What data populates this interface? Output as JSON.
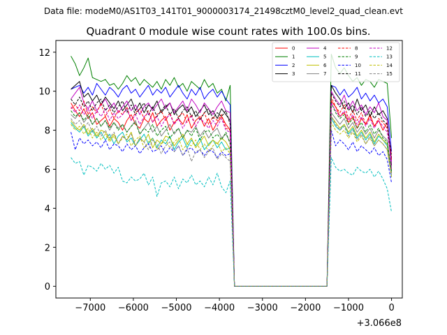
{
  "chart_data": {
    "type": "line",
    "suptitle": "Data file: modeM0/AS1T03_141T01_9000003174_21498cztM0_level2_quad_clean.evt",
    "title": "Quadrant 0 module wise count rates with 100.0s bins.",
    "xlabel": "",
    "ylabel": "",
    "x_offset_label": "+3.066e8",
    "xlim": [
      -7800,
      250
    ],
    "ylim": [
      -0.6,
      12.6
    ],
    "xticks": [
      -7000,
      -6000,
      -5000,
      -4000,
      -3000,
      -2000,
      -1000,
      0
    ],
    "xtick_labels": [
      "−7000",
      "−6000",
      "−5000",
      "−4000",
      "−3000",
      "−2000",
      "−1000",
      "0"
    ],
    "yticks": [
      0,
      2,
      4,
      6,
      8,
      10,
      12
    ],
    "ytick_labels": [
      "0",
      "2",
      "4",
      "6",
      "8",
      "10",
      "12"
    ],
    "gap": [
      -3650,
      -1500
    ],
    "segment1": {
      "start": -7450,
      "end": -3750,
      "step": 100,
      "count": 38
    },
    "segment2": {
      "start": -1400,
      "end": -100,
      "step": 100,
      "count": 14
    },
    "endpoint_x": 0,
    "legend_position": "upper right",
    "series": [
      {
        "name": "0",
        "color": "#ff0000",
        "dash": "solid",
        "seg1": [
          9.4,
          9.0,
          8.7,
          9.1,
          8.6,
          8.9,
          8.3,
          8.5,
          8.7,
          8.2,
          8.6,
          8.4,
          8.0,
          8.5,
          8.8,
          8.3,
          8.1,
          8.6,
          8.4,
          8.9,
          8.2,
          8.5,
          8.7,
          8.0,
          8.4,
          8.6,
          8.3,
          8.8,
          8.1,
          8.5,
          8.7,
          8.2,
          8.6,
          8.0,
          8.4,
          8.7,
          8.3,
          8.0
        ],
        "seg2": [
          9.5,
          9.2,
          8.7,
          8.9,
          8.4,
          8.7,
          8.1,
          8.6,
          8.3,
          8.8,
          8.2,
          8.5,
          8.0,
          8.4
        ],
        "end": 6.5
      },
      {
        "name": "1",
        "color": "#008000",
        "dash": "solid",
        "seg1": [
          11.8,
          11.4,
          10.8,
          11.2,
          11.7,
          10.7,
          10.6,
          10.5,
          10.6,
          10.3,
          10.4,
          10.1,
          10.4,
          10.8,
          10.5,
          10.7,
          10.3,
          10.6,
          10.4,
          10.2,
          10.5,
          10.1,
          10.6,
          10.3,
          10.7,
          10.2,
          10.4,
          10.0,
          10.5,
          10.3,
          10.1,
          10.6,
          10.2,
          10.4,
          9.9,
          10.1,
          9.5,
          10.3
        ],
        "seg2": [
          11.9,
          11.2,
          10.9,
          11.2,
          10.8,
          10.5,
          10.7,
          10.3,
          10.6,
          10.5,
          10.2,
          10.6,
          10.5,
          10.4
        ],
        "end": 7.6
      },
      {
        "name": "2",
        "color": "#0000ff",
        "dash": "solid",
        "seg1": [
          10.1,
          10.2,
          10.3,
          9.9,
          10.2,
          9.8,
          10.4,
          10.1,
          9.8,
          10.2,
          10.0,
          9.7,
          10.1,
          10.3,
          9.9,
          10.1,
          9.7,
          10.0,
          10.3,
          9.8,
          10.1,
          9.9,
          10.2,
          9.7,
          10.0,
          10.3,
          9.9,
          9.6,
          10.1,
          9.8,
          10.2,
          9.6,
          9.9,
          10.1,
          9.7,
          10.0,
          9.6,
          9.3
        ],
        "seg2": [
          10.3,
          10.2,
          9.8,
          10.1,
          9.7,
          9.9,
          10.2,
          9.6,
          9.9,
          9.5,
          9.8,
          9.4,
          9.6,
          9.2
        ],
        "end": 6.9
      },
      {
        "name": "3",
        "color": "#000000",
        "dash": "solid",
        "seg1": [
          10.1,
          10.3,
          10.5,
          9.7,
          9.9,
          9.5,
          9.8,
          9.3,
          9.7,
          9.4,
          9.1,
          9.5,
          9.0,
          9.3,
          9.6,
          9.0,
          9.4,
          8.9,
          9.3,
          9.1,
          9.5,
          8.9,
          9.2,
          9.4,
          8.8,
          9.1,
          9.3,
          8.9,
          9.2,
          8.7,
          9.0,
          9.3,
          8.8,
          9.0,
          8.6,
          9.1,
          8.8,
          8.5
        ],
        "seg2": [
          10.3,
          9.9,
          9.6,
          9.1,
          9.4,
          8.9,
          9.6,
          9.0,
          9.3,
          8.7,
          9.2,
          8.8,
          9.0,
          8.6
        ],
        "end": 6.2
      },
      {
        "name": "4",
        "color": "#c000c0",
        "dash": "solid",
        "seg1": [
          9.6,
          9.9,
          10.2,
          9.4,
          9.1,
          9.5,
          9.0,
          9.3,
          9.6,
          9.1,
          9.4,
          8.9,
          9.2,
          9.5,
          9.0,
          9.3,
          8.8,
          9.2,
          9.4,
          9.0,
          9.3,
          9.6,
          9.1,
          9.4,
          8.9,
          9.2,
          9.5,
          9.0,
          9.6,
          9.3,
          8.9,
          9.4,
          9.1,
          8.8,
          9.2,
          9.5,
          9.0,
          8.9
        ],
        "seg2": [
          10.0,
          9.6,
          9.3,
          9.8,
          9.1,
          9.5,
          9.0,
          9.3,
          8.8,
          9.2,
          8.9,
          9.4,
          8.7,
          8.5
        ],
        "end": 6.0
      },
      {
        "name": "5",
        "color": "#00bfbf",
        "dash": "solid",
        "seg1": [
          8.4,
          8.1,
          7.9,
          8.2,
          7.7,
          8.0,
          7.6,
          7.9,
          7.5,
          7.8,
          7.3,
          7.7,
          7.9,
          7.4,
          7.6,
          7.2,
          7.5,
          7.8,
          7.3,
          7.6,
          7.1,
          7.5,
          7.3,
          7.7,
          7.0,
          7.4,
          7.6,
          7.1,
          7.5,
          7.2,
          7.6,
          7.0,
          7.3,
          7.5,
          7.1,
          7.4,
          7.0,
          7.1
        ],
        "seg2": [
          8.6,
          8.2,
          8.0,
          8.3,
          7.8,
          8.1,
          7.6,
          7.9,
          7.5,
          7.8,
          7.3,
          7.7,
          7.5,
          7.2
        ],
        "end": 5.6
      },
      {
        "name": "6",
        "color": "#bfbf00",
        "dash": "solid",
        "seg1": [
          8.5,
          8.2,
          8.0,
          8.3,
          7.8,
          8.1,
          7.7,
          8.0,
          7.9,
          7.5,
          7.8,
          7.3,
          7.7,
          7.5,
          7.9,
          7.2,
          7.6,
          7.4,
          7.8,
          7.1,
          7.5,
          7.3,
          7.7,
          7.6,
          7.2,
          7.5,
          7.8,
          7.3,
          7.6,
          7.1,
          7.4,
          7.7,
          7.2,
          7.5,
          7.3,
          7.6,
          7.4,
          7.0
        ],
        "seg2": [
          8.7,
          8.4,
          8.1,
          8.3,
          7.9,
          8.2,
          7.7,
          8.0,
          7.6,
          7.9,
          7.4,
          7.8,
          7.5,
          7.3
        ],
        "end": 5.8
      },
      {
        "name": "7",
        "color": "#808080",
        "dash": "solid",
        "seg1": [
          8.8,
          8.6,
          8.9,
          8.4,
          8.7,
          8.3,
          8.6,
          8.2,
          8.5,
          8.0,
          8.4,
          8.1,
          8.3,
          7.9,
          8.2,
          8.5,
          7.8,
          8.1,
          8.4,
          7.9,
          8.2,
          7.7,
          8.0,
          8.3,
          7.8,
          8.1,
          7.6,
          8.0,
          7.9,
          8.2,
          7.7,
          8.0,
          7.6,
          7.9,
          8.1,
          7.6,
          7.8,
          7.4
        ],
        "seg2": [
          8.9,
          8.6,
          8.3,
          8.6,
          8.1,
          8.4,
          7.9,
          8.2,
          7.8,
          8.1,
          7.6,
          8.0,
          7.7,
          7.5
        ],
        "end": 5.8
      },
      {
        "name": "8",
        "color": "#ff0000",
        "dash": "dashed",
        "seg1": [
          9.1,
          9.3,
          9.0,
          9.5,
          8.8,
          9.2,
          8.9,
          9.4,
          8.7,
          9.1,
          8.6,
          9.0,
          8.8,
          9.2,
          8.5,
          8.9,
          9.1,
          8.6,
          9.0,
          8.4,
          8.8,
          9.0,
          8.5,
          8.9,
          8.3,
          8.7,
          8.9,
          8.4,
          8.8,
          8.2,
          8.6,
          8.9,
          8.3,
          8.7,
          8.5,
          8.8,
          8.1,
          8.0
        ],
        "seg2": [
          9.7,
          9.2,
          8.9,
          9.3,
          8.6,
          9.0,
          8.5,
          8.9,
          8.3,
          8.7,
          8.2,
          8.6,
          8.4,
          8.1
        ],
        "end": 6.8
      },
      {
        "name": "9",
        "color": "#008000",
        "dash": "dashed",
        "seg1": [
          9.0,
          8.7,
          8.9,
          8.5,
          8.8,
          8.3,
          8.6,
          8.2,
          8.5,
          8.1,
          8.4,
          8.0,
          8.3,
          7.9,
          8.2,
          8.4,
          7.8,
          8.1,
          7.9,
          8.3,
          7.7,
          8.0,
          8.2,
          7.6,
          7.9,
          8.1,
          7.6,
          8.0,
          7.7,
          8.1,
          7.5,
          7.9,
          8.0,
          7.6,
          7.8,
          7.5,
          7.9,
          7.3
        ],
        "seg2": [
          9.4,
          8.9,
          8.6,
          8.8,
          8.3,
          8.6,
          8.1,
          8.4,
          7.9,
          8.3,
          7.8,
          8.1,
          7.6,
          7.4
        ],
        "end": 5.9
      },
      {
        "name": "10",
        "color": "#0000ff",
        "dash": "dashed",
        "seg1": [
          7.9,
          7.0,
          7.6,
          7.3,
          7.5,
          7.2,
          7.4,
          7.1,
          7.5,
          7.0,
          7.3,
          7.2,
          6.9,
          7.3,
          7.0,
          7.2,
          6.8,
          7.1,
          7.3,
          6.9,
          7.0,
          7.2,
          6.8,
          7.1,
          6.9,
          7.2,
          6.7,
          7.0,
          7.1,
          6.8,
          7.0,
          6.7,
          7.0,
          6.9,
          6.6,
          6.9,
          6.7,
          6.8
        ],
        "seg2": [
          8.0,
          7.2,
          7.5,
          7.3,
          7.0,
          7.4,
          6.9,
          7.2,
          7.0,
          6.8,
          7.1,
          6.7,
          6.9,
          6.5
        ],
        "end": 5.3
      },
      {
        "name": "11",
        "color": "#000000",
        "dash": "dashed",
        "seg1": [
          9.6,
          9.3,
          9.7,
          9.2,
          9.5,
          9.0,
          9.4,
          9.6,
          9.0,
          9.3,
          8.9,
          9.2,
          9.5,
          8.9,
          9.3,
          8.8,
          9.1,
          9.4,
          8.8,
          9.2,
          8.7,
          9.0,
          9.3,
          8.8,
          9.1,
          8.6,
          9.0,
          9.2,
          8.7,
          9.0,
          8.5,
          8.9,
          9.1,
          8.6,
          8.9,
          8.7,
          9.0,
          8.3
        ],
        "seg2": [
          9.9,
          9.5,
          9.2,
          9.5,
          9.0,
          9.3,
          8.8,
          9.2,
          8.7,
          9.0,
          8.6,
          8.9,
          8.5,
          8.3
        ],
        "end": 6.6
      },
      {
        "name": "12",
        "color": "#c000c0",
        "dash": "dashed",
        "seg1": [
          9.2,
          8.9,
          9.3,
          8.8,
          9.1,
          8.6,
          9.0,
          8.7,
          9.1,
          8.5,
          8.9,
          8.6,
          8.8,
          9.1,
          8.5,
          8.8,
          8.3,
          8.7,
          8.9,
          8.4,
          8.7,
          8.2,
          8.6,
          8.8,
          8.3,
          8.6,
          8.1,
          8.5,
          8.7,
          8.2,
          8.6,
          8.4,
          8.1,
          8.5,
          8.2,
          8.6,
          8.0,
          7.9
        ],
        "seg2": [
          9.4,
          9.0,
          8.7,
          9.0,
          8.5,
          8.8,
          8.3,
          8.7,
          8.2,
          8.6,
          8.1,
          8.5,
          8.2,
          7.9
        ],
        "end": 6.4
      },
      {
        "name": "13",
        "color": "#00bfbf",
        "dash": "dashed",
        "seg1": [
          6.6,
          6.3,
          6.4,
          5.7,
          6.2,
          6.1,
          5.9,
          6.3,
          6.0,
          6.2,
          5.8,
          6.1,
          5.4,
          5.3,
          5.6,
          5.4,
          5.5,
          5.8,
          5.2,
          5.6,
          4.6,
          5.3,
          5.4,
          5.1,
          5.6,
          5.0,
          5.5,
          5.3,
          5.7,
          5.2,
          5.4,
          5.1,
          5.6,
          5.2,
          5.8,
          5.1,
          4.8,
          5.4
        ],
        "seg2": [
          6.6,
          6.1,
          5.9,
          6.0,
          5.8,
          5.7,
          6.1,
          5.9,
          5.8,
          6.0,
          5.6,
          5.9,
          5.5,
          5.0
        ],
        "end": 3.8
      },
      {
        "name": "14",
        "color": "#bfbf00",
        "dash": "dashed",
        "seg1": [
          8.3,
          8.0,
          8.2,
          7.8,
          8.1,
          7.6,
          7.9,
          7.5,
          7.8,
          7.4,
          7.7,
          7.3,
          7.6,
          7.8,
          7.2,
          7.5,
          7.7,
          7.1,
          7.4,
          7.6,
          7.0,
          7.3,
          7.5,
          7.1,
          7.4,
          7.6,
          7.0,
          7.3,
          7.2,
          7.5,
          7.0,
          7.3,
          6.9,
          7.2,
          7.4,
          6.9,
          7.1,
          6.8
        ],
        "seg2": [
          8.4,
          8.0,
          7.8,
          8.0,
          7.6,
          7.9,
          7.4,
          7.7,
          7.3,
          7.6,
          7.2,
          7.5,
          7.3,
          7.0
        ],
        "end": 5.6
      },
      {
        "name": "15",
        "color": "#808080",
        "dash": "dashed",
        "seg1": [
          8.6,
          8.3,
          8.5,
          8.1,
          8.4,
          7.9,
          8.2,
          7.7,
          8.0,
          7.6,
          7.9,
          7.3,
          7.7,
          7.5,
          7.8,
          7.2,
          7.6,
          7.4,
          7.0,
          7.5,
          7.3,
          6.8,
          7.2,
          7.4,
          6.9,
          7.2,
          6.7,
          7.1,
          6.4,
          6.9,
          7.0,
          6.6,
          6.9,
          7.1,
          6.5,
          6.8,
          6.6,
          6.4
        ],
        "seg2": [
          8.7,
          8.3,
          8.0,
          8.2,
          7.7,
          8.0,
          7.5,
          7.8,
          7.3,
          7.7,
          7.2,
          7.5,
          7.3,
          7.0
        ],
        "end": 5.7
      }
    ]
  }
}
